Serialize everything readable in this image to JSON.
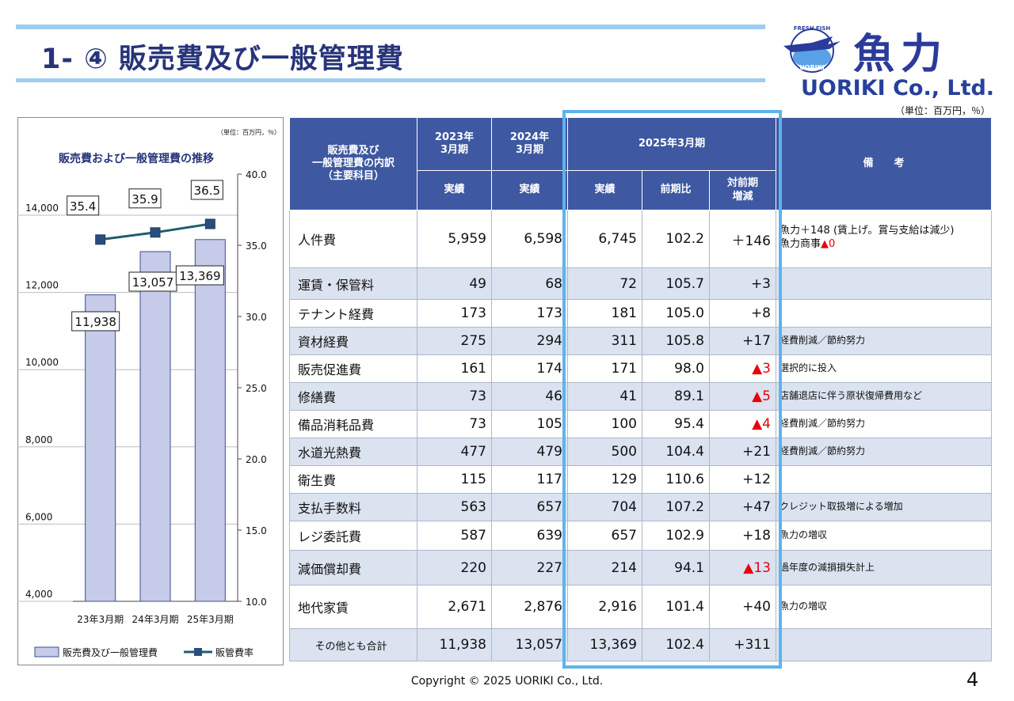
{
  "title": "1- ④ 販売費及び一般管理費",
  "logo": {
    "kanji": "魚力",
    "en": "UORIKI Co., Ltd.",
    "emblem_top": "FRESH FISH",
    "emblem_bottom": "UORIKI"
  },
  "unit_note": "（単位：百万円，％）",
  "chart_data": {
    "type": "bar",
    "title": "販売費および一般管理費の推移",
    "unit": "（単位：百万円，％）",
    "categories": [
      "23年3月期",
      "24年3月期",
      "25年3月期"
    ],
    "series": [
      {
        "name": "販売費及び一般管理費",
        "type": "bar",
        "axis": "left",
        "values": [
          11938,
          13057,
          13369
        ],
        "labels": [
          "11,938",
          "13,057",
          "13,369"
        ],
        "color": "#c5cbe9"
      },
      {
        "name": "販管費率",
        "type": "line",
        "axis": "right",
        "values": [
          35.4,
          35.9,
          36.5
        ],
        "labels": [
          "35.4",
          "35.9",
          "36.5"
        ],
        "color": "#1f5c73"
      }
    ],
    "y_left": {
      "min": 4000,
      "max": 14000,
      "ticks": [
        "4,000",
        "6,000",
        "8,000",
        "10,000",
        "12,000",
        "14,000"
      ],
      "tick_values": [
        4000,
        6000,
        8000,
        10000,
        12000,
        14000
      ]
    },
    "y_right": {
      "min": 10.0,
      "max": 40.0,
      "ticks": [
        "10.0",
        "15.0",
        "20.0",
        "25.0",
        "30.0",
        "35.0",
        "40.0"
      ],
      "tick_values": [
        10,
        15,
        20,
        25,
        30,
        35,
        40
      ]
    },
    "legend_position": "bottom"
  },
  "table": {
    "header_item": "販売費及び\n一般管理費の内訳\n（主要科目）",
    "col_2023": "2023年\n3月期",
    "col_2024": "2024年\n3月期",
    "col_2025": "2025年3月期",
    "sub_actual": "実績",
    "sub_yoy": "前期比",
    "sub_diff": "対前期\n増減",
    "col_note": "備　　考",
    "rows": [
      {
        "item": "人件費",
        "y2023": "5,959",
        "y2024": "6,598",
        "y2025": "6,745",
        "yoy": "102.2",
        "diff": "＋146",
        "neg": false,
        "note": "魚力＋148 (賃上げ。賞与支給は減少)",
        "note2": "魚力商事",
        "note2_mark": "▲0"
      },
      {
        "item": "運賃・保管料",
        "y2023": "49",
        "y2024": "68",
        "y2025": "72",
        "yoy": "105.7",
        "diff": "+3",
        "neg": false,
        "note": ""
      },
      {
        "item": "テナント経費",
        "y2023": "173",
        "y2024": "173",
        "y2025": "181",
        "yoy": "105.0",
        "diff": "+8",
        "neg": false,
        "note": ""
      },
      {
        "item": "資材経費",
        "y2023": "275",
        "y2024": "294",
        "y2025": "311",
        "yoy": "105.8",
        "diff": "+17",
        "neg": false,
        "note": "経費削減／節約努力"
      },
      {
        "item": "販売促進費",
        "y2023": "161",
        "y2024": "174",
        "y2025": "171",
        "yoy": "98.0",
        "diff": "▲3",
        "neg": true,
        "note": "選択的に投入"
      },
      {
        "item": "修繕費",
        "y2023": "73",
        "y2024": "46",
        "y2025": "41",
        "yoy": "89.1",
        "diff": "▲5",
        "neg": true,
        "note": "店舗退店に伴う原状復帰費用など"
      },
      {
        "item": "備品消耗品費",
        "y2023": "73",
        "y2024": "105",
        "y2025": "100",
        "yoy": "95.4",
        "diff": "▲4",
        "neg": true,
        "note": "経費削減／節約努力"
      },
      {
        "item": "水道光熱費",
        "y2023": "477",
        "y2024": "479",
        "y2025": "500",
        "yoy": "104.4",
        "diff": "+21",
        "neg": false,
        "note": "経費削減／節約努力"
      },
      {
        "item": "衛生費",
        "y2023": "115",
        "y2024": "117",
        "y2025": "129",
        "yoy": "110.6",
        "diff": "+12",
        "neg": false,
        "note": ""
      },
      {
        "item": "支払手数料",
        "y2023": "563",
        "y2024": "657",
        "y2025": "704",
        "yoy": "107.2",
        "diff": "+47",
        "neg": false,
        "note": "クレジット取扱増による増加"
      },
      {
        "item": "レジ委託費",
        "y2023": "587",
        "y2024": "639",
        "y2025": "657",
        "yoy": "102.9",
        "diff": "+18",
        "neg": false,
        "note": "魚力の増収"
      },
      {
        "item": "減価償却費",
        "y2023": "220",
        "y2024": "227",
        "y2025": "214",
        "yoy": "94.1",
        "diff": "▲13",
        "neg": true,
        "note": "過年度の減損損失計上"
      },
      {
        "item": "地代家賃",
        "y2023": "2,671",
        "y2024": "2,876",
        "y2025": "2,916",
        "yoy": "101.4",
        "diff": "+40",
        "neg": false,
        "note": "魚力の増収"
      },
      {
        "item": "その他とも合計",
        "y2023": "11,938",
        "y2024": "13,057",
        "y2025": "13,369",
        "yoy": "102.4",
        "diff": "+311",
        "neg": false,
        "note": ""
      }
    ]
  },
  "footer": "Copyright © 2025 UORIKI Co., Ltd.",
  "page_number": "4"
}
